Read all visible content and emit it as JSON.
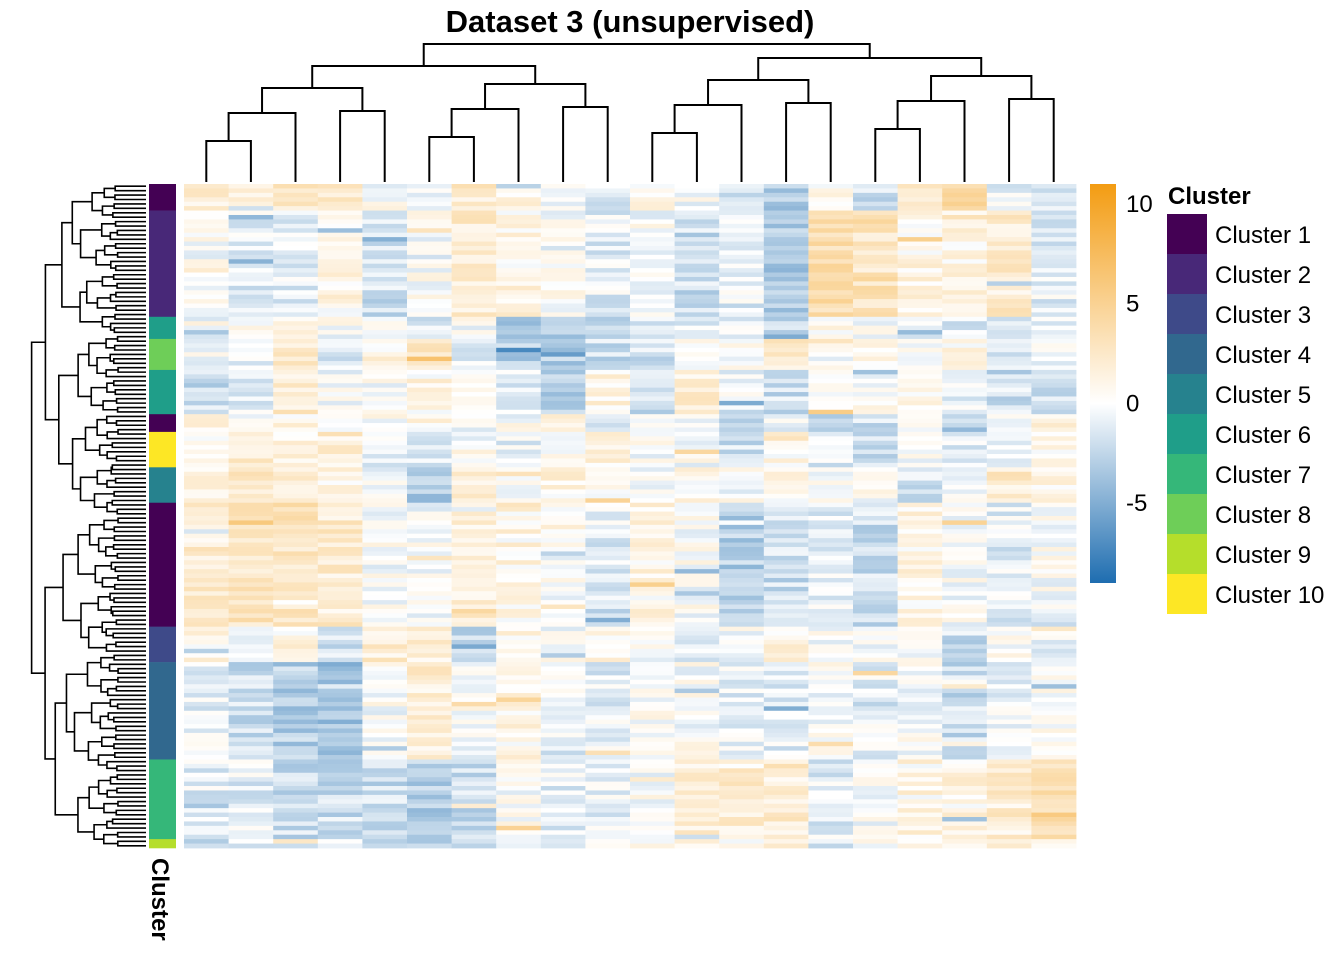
{
  "chart_data": {
    "type": "heatmap",
    "title": "Dataset 3 (unsupervised)",
    "n_rows": 150,
    "n_columns": 20,
    "color_scale": {
      "min": -9,
      "max": 11,
      "ticks": [
        10,
        5,
        0,
        -5
      ],
      "tick_labels": [
        "10",
        "5",
        "0",
        "-5"
      ],
      "colors": {
        "low": "#1e6db0",
        "mid": "#ffffff",
        "high": "#f39c12"
      }
    },
    "row_annotation": {
      "label": "Cluster",
      "legend_title": "Cluster",
      "legend_entries": [
        {
          "label": "Cluster 1",
          "color": "#440154"
        },
        {
          "label": "Cluster 2",
          "color": "#482878"
        },
        {
          "label": "Cluster 3",
          "color": "#3e4a89"
        },
        {
          "label": "Cluster 4",
          "color": "#31688e"
        },
        {
          "label": "Cluster 5",
          "color": "#26828e"
        },
        {
          "label": "Cluster 6",
          "color": "#1f9e89"
        },
        {
          "label": "Cluster 7",
          "color": "#35b779"
        },
        {
          "label": "Cluster 8",
          "color": "#6ece58"
        },
        {
          "label": "Cluster 9",
          "color": "#b5de2b"
        },
        {
          "label": "Cluster 10",
          "color": "#fde725"
        }
      ],
      "row_order_blocks": [
        {
          "cluster": 1,
          "rows": 6
        },
        {
          "cluster": 2,
          "rows": 24
        },
        {
          "cluster": 6,
          "rows": 5
        },
        {
          "cluster": 8,
          "rows": 7
        },
        {
          "cluster": 6,
          "rows": 10
        },
        {
          "cluster": 1,
          "rows": 4
        },
        {
          "cluster": 10,
          "rows": 8
        },
        {
          "cluster": 5,
          "rows": 8
        },
        {
          "cluster": 1,
          "rows": 28
        },
        {
          "cluster": 3,
          "rows": 8
        },
        {
          "cluster": 4,
          "rows": 22
        },
        {
          "cluster": 7,
          "rows": 18
        },
        {
          "cluster": 9,
          "rows": 2
        }
      ]
    },
    "block_means": [
      [
        2,
        1,
        3,
        2,
        0,
        0,
        2,
        1,
        0,
        -1,
        1,
        0,
        -2,
        -3,
        1,
        -2,
        2,
        4,
        -1,
        -1
      ],
      [
        0,
        -1,
        -1,
        1,
        -2,
        0,
        2,
        1,
        0,
        -1,
        0,
        -2,
        -1,
        -3,
        4,
        3,
        1,
        1,
        2,
        -1
      ],
      [
        -2,
        0,
        1,
        0,
        0,
        -1,
        0,
        -4,
        -3,
        -3,
        -1,
        -1,
        -1,
        -2,
        1,
        0,
        -1,
        -1,
        -1,
        -1
      ],
      [
        0,
        -1,
        2,
        -1,
        1,
        2,
        -1,
        -3,
        -3,
        -2,
        -2,
        0,
        0,
        2,
        0,
        1,
        0,
        1,
        -1,
        0
      ],
      [
        -2,
        -1,
        2,
        0,
        0,
        1,
        1,
        -1,
        -3,
        1,
        -2,
        2,
        -1,
        -2,
        1,
        0,
        1,
        -1,
        -2,
        -2
      ],
      [
        1,
        0,
        1,
        0,
        0,
        1,
        0,
        0,
        1,
        0,
        0,
        -1,
        -2,
        -1,
        -3,
        -2,
        0,
        -3,
        0,
        1
      ],
      [
        1,
        2,
        1,
        2,
        -1,
        -1,
        0,
        -1,
        0,
        1,
        0,
        0,
        -2,
        1,
        -1,
        -2,
        0,
        -1,
        -1,
        1
      ],
      [
        1,
        2,
        2,
        1,
        0,
        -3,
        2,
        0,
        1,
        1,
        0,
        1,
        0,
        1,
        0,
        0,
        -2,
        0,
        2,
        1
      ],
      [
        2,
        3,
        3,
        2,
        0,
        0,
        2,
        1,
        0,
        -1,
        1,
        0,
        -3,
        -2,
        -1,
        -2,
        1,
        0,
        -1,
        0
      ],
      [
        1,
        0,
        1,
        -2,
        2,
        1,
        -2,
        1,
        0,
        1,
        0,
        -1,
        0,
        1,
        0,
        0,
        0,
        -2,
        0,
        -1
      ],
      [
        -1,
        -2,
        -3,
        -4,
        0,
        2,
        0,
        1,
        0,
        -1,
        0,
        0,
        -1,
        -1,
        0,
        -1,
        0,
        -2,
        -1,
        0
      ],
      [
        -1,
        -1,
        -2,
        -2,
        -2,
        -3,
        -2,
        0,
        -1,
        -1,
        0,
        2,
        2,
        2,
        -1,
        0,
        1,
        1,
        2,
        3
      ],
      [
        -2,
        -1,
        -1,
        0,
        -2,
        -3,
        -2,
        0,
        0,
        -1,
        0,
        1,
        1,
        1,
        -1,
        0,
        0,
        1,
        1,
        1
      ]
    ]
  }
}
